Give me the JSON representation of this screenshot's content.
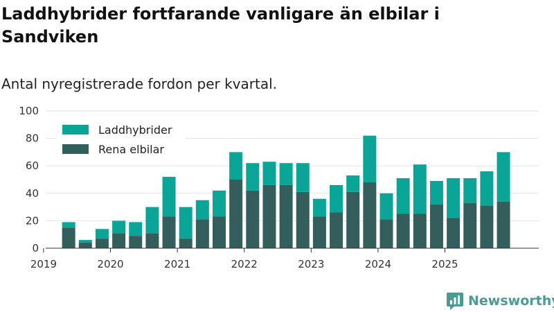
{
  "title": "Laddhybrider fortfarande vanligare än elbilar i Sandviken",
  "subtitle": "Antal nyregistrerade fordon per kvartal.",
  "brand": {
    "name": "Newsworthy",
    "icon": "newsworthy-logo-icon",
    "color": "#4a9a96"
  },
  "chart_data": {
    "type": "bar",
    "stacked": true,
    "categories": [
      "2019 Q1",
      "2019 Q2",
      "2019 Q3",
      "2019 Q4",
      "2020 Q1",
      "2020 Q2",
      "2020 Q3",
      "2020 Q4",
      "2021 Q1",
      "2021 Q2",
      "2021 Q3",
      "2021 Q4",
      "2022 Q1",
      "2022 Q2",
      "2022 Q3",
      "2022 Q4",
      "2023 Q1",
      "2023 Q2",
      "2023 Q3",
      "2023 Q4",
      "2024 Q1",
      "2024 Q2",
      "2024 Q3",
      "2024 Q4",
      "2025 Q1",
      "2025 Q2",
      "2025 Q3",
      "2025 Q4"
    ],
    "x_tick_labels": [
      "2019",
      "2020",
      "2021",
      "2022",
      "2023",
      "2024",
      "2025"
    ],
    "series": [
      {
        "name": "Rena elbilar",
        "color": "#335e5b",
        "values": [
          0,
          15,
          4,
          7,
          11,
          9,
          11,
          23,
          7,
          21,
          23,
          50,
          42,
          46,
          46,
          41,
          23,
          26,
          41,
          48,
          21,
          25,
          25,
          32,
          22,
          33,
          31,
          34
        ]
      },
      {
        "name": "Laddhybrider",
        "color": "#0aa596",
        "values": [
          0,
          4,
          2,
          7,
          9,
          10,
          19,
          29,
          23,
          14,
          19,
          20,
          20,
          17,
          16,
          21,
          13,
          20,
          12,
          34,
          19,
          26,
          36,
          17,
          29,
          18,
          25,
          36
        ]
      }
    ],
    "legend_order": [
      "Laddhybrider",
      "Rena elbilar"
    ],
    "legend_position": "top-left",
    "xlabel": "",
    "ylabel": "",
    "ylim": [
      0,
      100
    ],
    "yticks": [
      0,
      20,
      40,
      60,
      80,
      100
    ],
    "grid": true
  }
}
